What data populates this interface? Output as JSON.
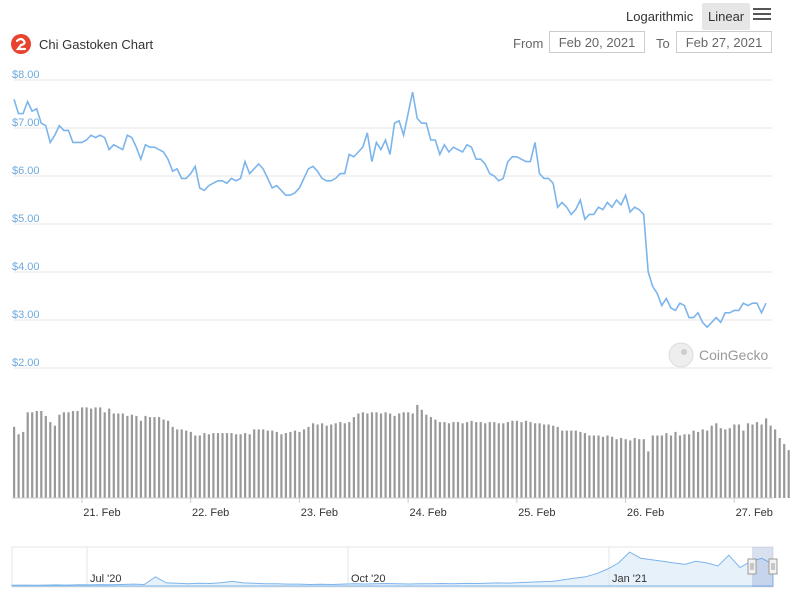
{
  "toolbar": {
    "logarithmic_label": "Logarithmic",
    "linear_label": "Linear",
    "menu_icon": "hamburger-menu-icon"
  },
  "header": {
    "logo_icon": "chi-gastoken-logo",
    "title": "Chi Gastoken Chart",
    "from_label": "From",
    "from_value": "Feb 20, 2021",
    "to_label": "To",
    "to_value": "Feb 27, 2021"
  },
  "watermark": "CoinGecko",
  "colors": {
    "price_line": "#7cb5ec",
    "volume_bar": "#999999",
    "gridline": "#e6e6e6",
    "axis_label": "#6fa8dc"
  },
  "chart_data": [
    {
      "type": "line",
      "yticks": [
        "$2.00",
        "$3.00",
        "$4.00",
        "$5.00",
        "$6.00",
        "$7.00",
        "$8.00"
      ],
      "ylim": [
        2,
        8
      ],
      "xticks": [
        "21. Feb",
        "22. Feb",
        "23. Feb",
        "24. Feb",
        "25. Feb",
        "26. Feb",
        "27. Feb"
      ],
      "x_start": "2021-02-20T09:00",
      "x_interval_hours": 1,
      "grid": true,
      "series": [
        {
          "values": [
            7.6,
            7.3,
            7.3,
            7.55,
            7.35,
            7.4,
            7.1,
            7.05,
            6.7,
            6.85,
            7.05,
            6.95,
            6.95,
            6.7,
            6.7,
            6.7,
            6.75,
            6.85,
            6.8,
            6.85,
            6.8,
            6.55,
            6.65,
            6.6,
            6.55,
            6.85,
            6.8,
            6.6,
            6.35,
            6.65,
            6.6,
            6.6,
            6.55,
            6.5,
            6.35,
            6.1,
            6.15,
            5.95,
            5.95,
            6.05,
            6.2,
            5.75,
            5.7,
            5.8,
            5.85,
            5.9,
            5.9,
            5.85,
            5.95,
            5.9,
            5.95,
            6.3,
            6.05,
            6.15,
            6.25,
            6.15,
            5.95,
            5.75,
            5.8,
            5.7,
            5.6,
            5.6,
            5.65,
            5.75,
            5.95,
            6.15,
            6.2,
            6.1,
            5.95,
            5.9,
            5.9,
            5.95,
            6.05,
            6.05,
            6.45,
            6.4,
            6.5,
            6.6,
            6.9,
            6.3,
            6.7,
            6.55,
            6.75,
            6.45,
            7.1,
            7.15,
            6.85,
            7.3,
            7.75,
            7.2,
            7.1,
            7.1,
            6.75,
            6.75,
            6.45,
            6.65,
            6.5,
            6.6,
            6.55,
            6.5,
            6.65,
            6.6,
            6.35,
            6.35,
            6.25,
            6.05,
            6,
            5.9,
            5.95,
            6.3,
            6.4,
            6.4,
            6.35,
            6.3,
            6.3,
            6.7,
            6.05,
            5.95,
            5.95,
            5.85,
            5.35,
            5.45,
            5.35,
            5.2,
            5.3,
            5.5,
            5.1,
            5.2,
            5.2,
            5.35,
            5.3,
            5.45,
            5.35,
            5.5,
            5.4,
            5.6,
            5.25,
            5.35,
            5.3,
            5.2,
            4,
            3.7,
            3.55,
            3.3,
            3.45,
            3.25,
            3.2,
            3.35,
            3.3,
            3.05,
            3.05,
            3.15,
            2.95,
            2.85,
            2.95,
            3.05,
            2.95,
            3.15,
            3.15,
            3.2,
            3.2,
            3.35,
            3.3,
            3.35,
            3.35,
            3.15,
            3.35
          ]
        }
      ]
    },
    {
      "type": "bar",
      "title": "",
      "values": [
        2.9,
        2.6,
        2.7,
        3.5,
        3.5,
        3.55,
        3.55,
        3.35,
        3.1,
        2.95,
        3.4,
        3.5,
        3.5,
        3.55,
        3.55,
        3.7,
        3.7,
        3.65,
        3.7,
        3.7,
        3.5,
        3.65,
        3.45,
        3.45,
        3.45,
        3.35,
        3.4,
        3.35,
        3.15,
        3.35,
        3.3,
        3.3,
        3.3,
        3.2,
        3.15,
        2.9,
        2.8,
        2.8,
        2.75,
        2.7,
        2.55,
        2.55,
        2.65,
        2.6,
        2.65,
        2.65,
        2.65,
        2.65,
        2.65,
        2.6,
        2.6,
        2.65,
        2.6,
        2.8,
        2.8,
        2.8,
        2.75,
        2.75,
        2.7,
        2.6,
        2.65,
        2.7,
        2.75,
        2.7,
        2.8,
        2.9,
        3.05,
        3.0,
        3.05,
        2.95,
        3.0,
        3.05,
        3.1,
        3.05,
        3.1,
        3.3,
        3.45,
        3.5,
        3.45,
        3.5,
        3.5,
        3.45,
        3.5,
        3.45,
        3.35,
        3.45,
        3.5,
        3.5,
        3.45,
        3.8,
        3.6,
        3.4,
        3.3,
        3.2,
        3.1,
        3.1,
        3.05,
        3.1,
        3.1,
        3.05,
        3.1,
        3.15,
        3.1,
        3.1,
        3.05,
        3.1,
        3.1,
        3.05,
        3.05,
        3.1,
        3.15,
        3.15,
        3.1,
        3.15,
        3.1,
        3.05,
        3.05,
        3.0,
        3.0,
        2.95,
        2.9,
        2.75,
        2.75,
        2.75,
        2.75,
        2.7,
        2.65,
        2.55,
        2.55,
        2.55,
        2.5,
        2.55,
        2.5,
        2.4,
        2.45,
        2.4,
        2.35,
        2.45,
        2.4,
        2.4,
        1.9,
        2.55,
        2.55,
        2.55,
        2.65,
        2.55,
        2.7,
        2.55,
        2.6,
        2.6,
        2.75,
        2.7,
        2.8,
        2.75,
        2.95,
        3.05,
        2.85,
        2.8,
        2.85,
        3.0,
        3.0,
        2.75,
        3.05,
        3.0,
        3.1,
        3.0,
        3.25,
        2.95,
        2.8,
        2.45,
        2.2,
        1.95
      ],
      "ylim": [
        0,
        4
      ]
    },
    {
      "type": "area",
      "title": "",
      "xticks": [
        "Jul '20",
        "Oct '20",
        "Jan '21"
      ],
      "values": [
        0.05,
        0.06,
        0.05,
        0.06,
        0.07,
        0.06,
        0.08,
        0.07,
        0.09,
        0.08,
        0.1,
        0.12,
        0.1,
        0.6,
        0.2,
        0.18,
        0.15,
        0.18,
        0.16,
        0.22,
        0.3,
        0.2,
        0.18,
        0.15,
        0.14,
        0.12,
        0.12,
        0.1,
        0.11,
        0.1,
        0.12,
        0.14,
        0.13,
        0.15,
        0.16,
        0.14,
        0.13,
        0.15,
        0.14,
        0.16,
        0.15,
        0.17,
        0.16,
        0.18,
        0.2,
        0.19,
        0.22,
        0.25,
        0.28,
        0.3,
        0.4,
        0.5,
        0.6,
        0.8,
        1.1,
        1.5,
        2.2,
        1.8,
        1.7,
        1.6,
        1.5,
        1.4,
        1.6,
        1.5,
        1.3,
        2.0,
        1.2,
        1.6,
        1.8,
        1.4
      ]
    }
  ]
}
